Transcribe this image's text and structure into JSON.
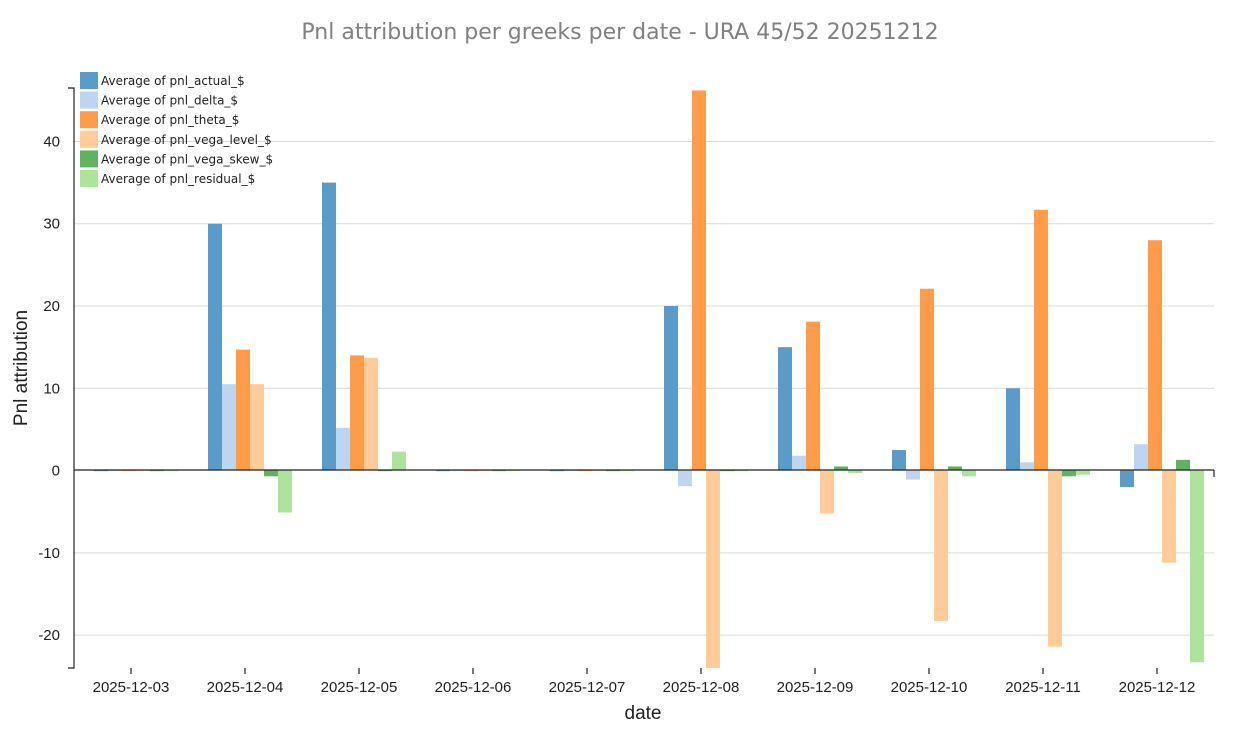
{
  "chart_data": {
    "type": "bar",
    "title": "Pnl attribution per greeks per date - URA 45/52 20251212",
    "xlabel": "date",
    "ylabel": "Pnl attribution",
    "ylim": [
      -24,
      46.5
    ],
    "yticks": [
      -20,
      -10,
      0,
      10,
      20,
      30,
      40
    ],
    "grid": true,
    "legend_position": "top-left",
    "categories": [
      "2025-12-03",
      "2025-12-04",
      "2025-12-05",
      "2025-12-06",
      "2025-12-07",
      "2025-12-08",
      "2025-12-09",
      "2025-12-10",
      "2025-12-11",
      "2025-12-12"
    ],
    "series": [
      {
        "name": "Average of pnl_actual_$",
        "color": "#5b9bc9",
        "values": [
          -0.1,
          30,
          35,
          -0.1,
          -0.1,
          20,
          15,
          2.5,
          10,
          -2
        ]
      },
      {
        "name": "Average of pnl_delta_$",
        "color": "#bdd5ee",
        "values": [
          0,
          10.5,
          5.2,
          0,
          0,
          -1.9,
          1.8,
          -1.1,
          1,
          3.2
        ]
      },
      {
        "name": "Average of pnl_theta_$",
        "color": "#ff9c4a",
        "values": [
          -0.1,
          14.7,
          14,
          -0.1,
          -0.1,
          46.2,
          18.1,
          22.1,
          31.7,
          28
        ]
      },
      {
        "name": "Average of pnl_vega_level_$",
        "color": "#ffcc99",
        "values": [
          -0.1,
          10.5,
          13.7,
          -0.1,
          -0.1,
          -24,
          -5.2,
          -18.3,
          -21.4,
          -11.2
        ]
      },
      {
        "name": "Average of pnl_vega_skew_$",
        "color": "#5fb35f",
        "values": [
          -0.1,
          -0.7,
          0,
          -0.1,
          -0.1,
          -0.1,
          0.5,
          0.5,
          -0.7,
          1.3
        ]
      },
      {
        "name": "Average of pnl_residual_$",
        "color": "#aee39c",
        "values": [
          0,
          -5.1,
          2.3,
          0,
          0,
          -0.1,
          -0.3,
          -0.7,
          -0.5,
          -23.3
        ]
      }
    ]
  }
}
